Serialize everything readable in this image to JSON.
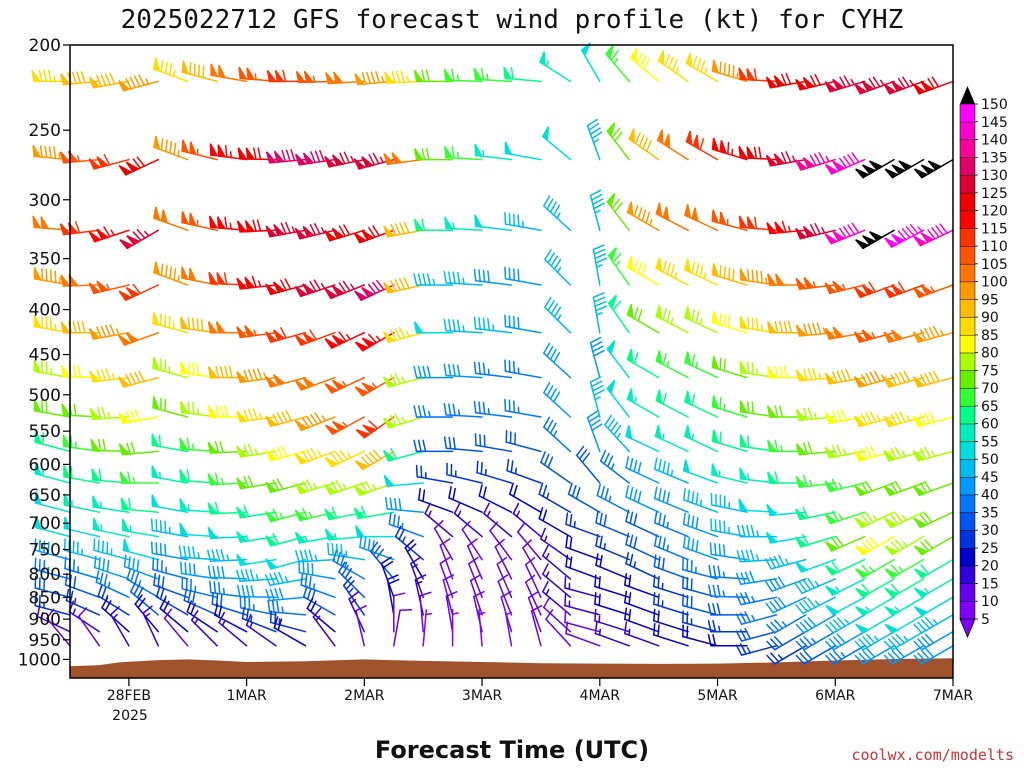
{
  "chart_data": {
    "type": "wind-barb-profile",
    "title": "2025022712 GFS forecast wind profile (kt) for CYHZ",
    "xlabel": "Forecast Time (UTC)",
    "credit": "coolwx.com/modelts",
    "y_axis": {
      "quantity": "pressure (hPa)",
      "inverted": true,
      "range": [
        200,
        1050
      ],
      "ticks": [
        200,
        250,
        300,
        350,
        400,
        450,
        500,
        550,
        600,
        650,
        700,
        750,
        800,
        850,
        900,
        950,
        1000
      ],
      "tick_labels": [
        "200",
        "250",
        "300",
        "350",
        "400",
        "450",
        "500",
        "550",
        "600",
        "650",
        "700",
        "750",
        "800",
        "850",
        "900",
        "950",
        "1000"
      ]
    },
    "x_axis": {
      "range_hours": [
        0,
        180
      ],
      "ticks_hours": [
        12,
        36,
        60,
        84,
        108,
        132,
        156,
        180
      ],
      "tick_labels": [
        "28FEB",
        "1MAR",
        "2MAR",
        "3MAR",
        "4MAR",
        "5MAR",
        "6MAR",
        "7MAR"
      ],
      "year_label": "2025"
    },
    "levels_hpa": [
      220,
      270,
      325,
      375,
      425,
      478,
      530,
      580,
      630,
      680,
      725,
      770,
      810,
      850,
      890,
      930,
      965
    ],
    "barb_interval_hours": 6,
    "keyframes": [
      {
        "t": 0,
        "spd": [
          85,
          95,
          100,
          95,
          85,
          75,
          68,
          62,
          55,
          52,
          48,
          40,
          35,
          30,
          25,
          15,
          10
        ],
        "dir": [
          270,
          275,
          275,
          280,
          280,
          280,
          280,
          285,
          285,
          285,
          285,
          285,
          285,
          285,
          285,
          295,
          320
        ]
      },
      {
        "t": 18,
        "spd": [
          95,
          120,
          125,
          110,
          100,
          90,
          80,
          72,
          65,
          60,
          55,
          48,
          42,
          35,
          28,
          20,
          15
        ],
        "dir": [
          255,
          245,
          240,
          245,
          250,
          255,
          260,
          265,
          270,
          275,
          280,
          285,
          290,
          300,
          310,
          320,
          335
        ]
      },
      {
        "t": 24,
        "spd": [
          85,
          95,
          100,
          95,
          85,
          75,
          68,
          62,
          55,
          50,
          45,
          40,
          35,
          30,
          25,
          18,
          12
        ],
        "dir": [
          290,
          290,
          290,
          290,
          285,
          285,
          285,
          280,
          280,
          280,
          280,
          280,
          285,
          290,
          300,
          310,
          320
        ]
      },
      {
        "t": 48,
        "spd": [
          110,
          130,
          125,
          120,
          110,
          100,
          90,
          80,
          72,
          65,
          58,
          50,
          45,
          40,
          35,
          25,
          18
        ],
        "dir": [
          270,
          265,
          260,
          255,
          255,
          255,
          255,
          255,
          255,
          255,
          255,
          255,
          260,
          265,
          275,
          285,
          300
        ]
      },
      {
        "t": 66,
        "spd": [
          95,
          125,
          120,
          130,
          115,
          105,
          110,
          90,
          75,
          60,
          50,
          40,
          30,
          22,
          18,
          12,
          8
        ],
        "dir": [
          265,
          255,
          250,
          245,
          240,
          240,
          235,
          240,
          250,
          260,
          270,
          290,
          320,
          340,
          350,
          0,
          10
        ]
      },
      {
        "t": 78,
        "spd": [
          70,
          70,
          60,
          45,
          50,
          40,
          35,
          30,
          25,
          20,
          15,
          10,
          8,
          8,
          8,
          8,
          5
        ],
        "dir": [
          270,
          270,
          270,
          270,
          270,
          270,
          270,
          270,
          280,
          290,
          310,
          330,
          340,
          340,
          345,
          350,
          0
        ]
      },
      {
        "t": 96,
        "spd": [
          60,
          50,
          45,
          40,
          40,
          35,
          35,
          30,
          25,
          20,
          15,
          10,
          10,
          10,
          10,
          10,
          8
        ],
        "dir": [
          275,
          280,
          280,
          280,
          280,
          280,
          280,
          285,
          290,
          300,
          310,
          320,
          330,
          335,
          335,
          340,
          345
        ]
      },
      {
        "t": 108,
        "spd": [
          50,
          45,
          45,
          45,
          45,
          40,
          45,
          40,
          30,
          28,
          25,
          20,
          18,
          15,
          15,
          12,
          10
        ],
        "dir": [
          330,
          340,
          345,
          350,
          350,
          345,
          345,
          340,
          320,
          300,
          290,
          290,
          290,
          285,
          285,
          285,
          290
        ]
      },
      {
        "t": 120,
        "spd": [
          80,
          90,
          95,
          80,
          70,
          60,
          55,
          50,
          42,
          38,
          32,
          28,
          25,
          22,
          20,
          18,
          15
        ],
        "dir": [
          310,
          305,
          300,
          300,
          300,
          300,
          300,
          295,
          295,
          295,
          295,
          295,
          295,
          290,
          290,
          290,
          290
        ]
      },
      {
        "t": 132,
        "spd": [
          85,
          110,
          100,
          85,
          75,
          65,
          60,
          55,
          50,
          45,
          42,
          38,
          35,
          30,
          28,
          25,
          20
        ],
        "dir": [
          300,
          300,
          295,
          295,
          295,
          295,
          295,
          295,
          290,
          290,
          290,
          290,
          285,
          285,
          285,
          285,
          285
        ]
      },
      {
        "t": 150,
        "spd": [
          120,
          125,
          115,
          100,
          90,
          80,
          72,
          65,
          58,
          52,
          48,
          45,
          40,
          38,
          35,
          30,
          25
        ],
        "dir": [
          260,
          260,
          265,
          270,
          270,
          270,
          270,
          270,
          270,
          265,
          260,
          255,
          250,
          245,
          240,
          240,
          240
        ]
      },
      {
        "t": 168,
        "spd": [
          125,
          150,
          150,
          110,
          105,
          95,
          85,
          78,
          72,
          75,
          80,
          65,
          60,
          55,
          50,
          45,
          40
        ],
        "dir": [
          250,
          240,
          240,
          250,
          255,
          255,
          255,
          255,
          250,
          245,
          240,
          240,
          240,
          240,
          240,
          240,
          240
        ]
      },
      {
        "t": 180,
        "spd": [
          120,
          150,
          140,
          105,
          95,
          88,
          80,
          75,
          70,
          70,
          72,
          60,
          55,
          50,
          45,
          40,
          38
        ],
        "dir": [
          250,
          240,
          245,
          250,
          255,
          255,
          255,
          255,
          250,
          245,
          240,
          240,
          240,
          240,
          240,
          240,
          240
        ]
      }
    ],
    "terrain_surface_hpa": [
      [
        0,
        1018
      ],
      [
        6,
        1015
      ],
      [
        10,
        1008
      ],
      [
        18,
        1002
      ],
      [
        24,
        1000
      ],
      [
        30,
        1003
      ],
      [
        36,
        1007
      ],
      [
        48,
        1005
      ],
      [
        60,
        1000
      ],
      [
        72,
        1004
      ],
      [
        84,
        1007
      ],
      [
        96,
        1010
      ],
      [
        108,
        1011
      ],
      [
        120,
        1012
      ],
      [
        132,
        1011
      ],
      [
        144,
        1008
      ],
      [
        156,
        1003
      ],
      [
        168,
        999
      ],
      [
        180,
        997
      ]
    ],
    "terrain_color": "#a0522d",
    "colorbar": {
      "label_values": [
        5,
        10,
        15,
        20,
        25,
        30,
        35,
        40,
        45,
        50,
        55,
        60,
        65,
        70,
        75,
        80,
        85,
        90,
        95,
        100,
        105,
        110,
        115,
        120,
        125,
        130,
        135,
        140,
        145,
        150
      ],
      "labels": [
        "5",
        "10",
        "15",
        "20",
        "25",
        "30",
        "35",
        "40",
        "45",
        "50",
        "55",
        "60",
        "65",
        "70",
        "75",
        "80",
        "85",
        "90",
        "95",
        "100",
        "105",
        "110",
        "115",
        "120",
        "125",
        "130",
        "135",
        "140",
        "145",
        "150"
      ],
      "colors": [
        "#7f00ff",
        "#6600ee",
        "#3300dd",
        "#0000cc",
        "#0033dd",
        "#0055ee",
        "#0077ff",
        "#0099ff",
        "#00bbee",
        "#00dddd",
        "#00eebb",
        "#00ff88",
        "#33ff33",
        "#66ee00",
        "#aaff00",
        "#ffff00",
        "#ffdd00",
        "#ffbb00",
        "#ff9900",
        "#ff7700",
        "#ff5500",
        "#ff3300",
        "#ff0000",
        "#ee0000",
        "#dd0033",
        "#dd0066",
        "#ff0099",
        "#ff00cc",
        "#ff00ff"
      ],
      "over_color": "#000000",
      "under_color": "#7f00ff"
    }
  }
}
